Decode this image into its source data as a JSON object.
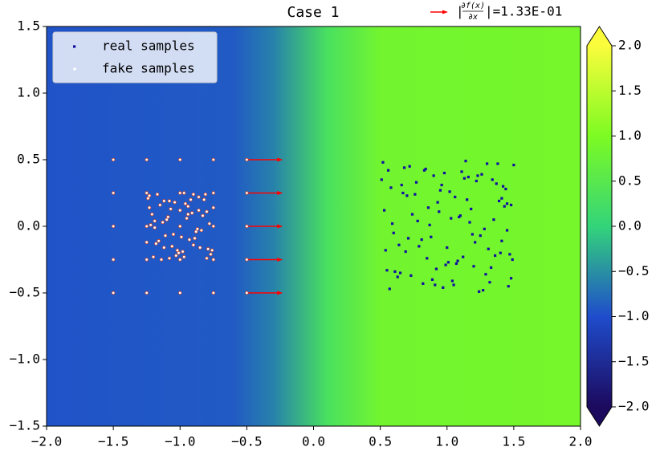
{
  "chart_data": {
    "type": "scatter",
    "title": "Case 1",
    "xlim": [
      -2,
      2
    ],
    "ylim": [
      -1.5,
      1.5
    ],
    "xticks": [
      {
        "value": -2,
        "label": "−2.0"
      },
      {
        "value": -1.5,
        "label": "−1.5"
      },
      {
        "value": -1,
        "label": "−1.0"
      },
      {
        "value": -0.5,
        "label": "−0.5"
      },
      {
        "value": 0,
        "label": "0.0"
      },
      0.5,
      {
        "value": 1,
        "label": "1.0"
      },
      1.5,
      {
        "value": 2,
        "label": "2.0"
      }
    ],
    "yticks": [
      {
        "value": -1.5,
        "label": "−1.5"
      },
      {
        "value": -1,
        "label": "−1.0"
      },
      {
        "value": -0.5,
        "label": "−0.5"
      },
      {
        "value": 0,
        "label": "0.0"
      },
      0.5,
      {
        "value": 1,
        "label": "1.0"
      },
      1.5
    ],
    "legend_loc": "upper left",
    "series": [
      {
        "name": "real samples",
        "color": "#1010a0",
        "marker": "square",
        "x": [
          0.53,
          0.61,
          0.72,
          0.88,
          0.95,
          1.04,
          1.17,
          1.23,
          1.36,
          1.48,
          0.57,
          0.66,
          0.79,
          0.83,
          0.99,
          1.09,
          1.14,
          1.29,
          1.41,
          1.45,
          0.51,
          0.69,
          0.74,
          0.91,
          1.02,
          1.11,
          1.21,
          1.33,
          1.38,
          1.49,
          0.59,
          0.63,
          0.77,
          0.86,
          0.97,
          1.06,
          1.19,
          1.26,
          1.31,
          1.44,
          0.55,
          0.68,
          0.81,
          0.93,
          1.01,
          1.13,
          1.24,
          1.35,
          1.42,
          1.47,
          0.52,
          0.64,
          0.76,
          0.89,
          0.94,
          1.07,
          1.16,
          1.28,
          1.39,
          1.46,
          0.58,
          0.71,
          0.84,
          0.92,
          1.03,
          1.12,
          1.22,
          1.32,
          1.43,
          1.5,
          0.54,
          0.67,
          0.73,
          0.87,
          0.98,
          1.08,
          1.18,
          1.27,
          1.37,
          1.41,
          0.6,
          0.7,
          0.82,
          0.9,
          1.0,
          1.1,
          1.2,
          1.3,
          1.4,
          1.45,
          0.56,
          0.65,
          0.78,
          0.85,
          0.96,
          1.05,
          1.15,
          1.25,
          1.34,
          1.48
        ],
        "y": [
          0.12,
          -0.34,
          0.45,
          -0.08,
          0.27,
          -0.41,
          0.03,
          0.38,
          -0.22,
          0.16,
          -0.47,
          0.31,
          -0.15,
          0.42,
          -0.29,
          0.07,
          0.49,
          -0.36,
          0.21,
          -0.03,
          0.35,
          -0.19,
          0.09,
          -0.44,
          0.26,
          0.41,
          -0.12,
          -0.31,
          0.47,
          -0.25,
          0.02,
          -0.38,
          0.33,
          0.14,
          -0.46,
          0.22,
          -0.06,
          0.39,
          -0.17,
          0.28,
          -0.33,
          0.44,
          -0.1,
          0.18,
          -0.27,
          0.36,
          -0.49,
          0.05,
          0.3,
          -0.21,
          0.48,
          -0.14,
          0.24,
          -0.4,
          0.11,
          -0.28,
          0.37,
          -0.02,
          0.19,
          -0.45,
          0.29,
          -0.09,
          0.43,
          -0.32,
          0.06,
          -0.23,
          0.34,
          -0.42,
          0.15,
          0.46,
          -0.18,
          0.25,
          -0.37,
          0.01,
          0.4,
          -0.26,
          0.13,
          -0.48,
          0.32,
          -0.11,
          -0.05,
          0.23,
          -0.43,
          0.38,
          -0.16,
          0.08,
          -0.3,
          0.47,
          -0.2,
          0.17,
          0.42,
          -0.35,
          0.04,
          -0.24,
          0.31,
          -0.44,
          0.2,
          -0.07,
          0.35,
          -0.39
        ]
      },
      {
        "name": "fake samples",
        "color": "#ffffff",
        "edgecolor": "#d24a2a",
        "marker": "circle",
        "x": [
          -1.5,
          -1.25,
          -1,
          -0.75,
          -0.5,
          -1.5,
          -1.25,
          -1,
          -0.75,
          -0.5,
          -1.5,
          -1.25,
          -1,
          -0.75,
          -0.5,
          -1.5,
          -1.25,
          -1,
          -0.75,
          -0.5,
          -1.5,
          -1.25,
          -1,
          -0.75,
          -0.5,
          -1.24,
          -1.18,
          -1.1,
          -1.03,
          -0.96,
          -0.88,
          -0.81,
          -0.76,
          -1.21,
          -1.14,
          -1.07,
          -0.99,
          -0.92,
          -0.85,
          -0.78,
          -1.23,
          -1.16,
          -1.09,
          -1.01,
          -0.94,
          -0.87,
          -0.8,
          -1.2,
          -1.12,
          -1.05,
          -0.97,
          -0.9,
          -0.83,
          -0.77,
          -1.22,
          -1.15,
          -1.08,
          -1.0,
          -0.93,
          -0.86,
          -0.79,
          -1.19,
          -1.11,
          -1.04,
          -0.98,
          -0.91,
          -0.84,
          -0.75,
          -1.25,
          -1.17,
          -1.06,
          -0.95,
          -0.89,
          -0.82,
          -1.13,
          -1.02,
          -0.9,
          -1.19,
          -0.86,
          -1.08,
          -0.97,
          -1.23,
          -0.8,
          -1.12,
          -0.94
        ],
        "y": [
          0.5,
          0.5,
          0.5,
          0.5,
          0.5,
          0.25,
          0.25,
          0.25,
          0.25,
          0.25,
          0,
          0,
          0,
          0,
          0,
          -0.25,
          -0.25,
          -0.25,
          -0.25,
          -0.25,
          -0.5,
          -0.5,
          -0.5,
          -0.5,
          -0.5,
          0.21,
          -0.13,
          0.05,
          -0.22,
          0.17,
          -0.04,
          0.24,
          -0.18,
          0.09,
          -0.25,
          0.13,
          -0.08,
          0.2,
          -0.16,
          0.02,
          0.23,
          -0.11,
          0.07,
          -0.2,
          0.15,
          -0.02,
          0.11,
          -0.23,
          0.19,
          -0.06,
          0.25,
          -0.14,
          0.08,
          -0.21,
          0.01,
          0.16,
          -0.24,
          0.12,
          -0.1,
          0.22,
          -0.17,
          0.04,
          -0.07,
          0.18,
          -0.19,
          0.1,
          -0.03,
          0.14,
          -0.12,
          0.24,
          -0.15,
          0.06,
          -0.09,
          0.2,
          0.03,
          -0.18,
          0.24,
          -0.01,
          0.12,
          0.19,
          -0.23,
          0.14,
          -0.24,
          -0.16,
          0.09
        ]
      }
    ],
    "arrows": {
      "color": "#ff0000",
      "x": [
        -0.5,
        -0.5,
        -0.5,
        -0.5,
        -0.5
      ],
      "y": [
        0.5,
        0.25,
        0,
        -0.25,
        -0.5
      ],
      "u": [
        0.27,
        0.27,
        0.27,
        0.27,
        0.27
      ],
      "label": {
        "open": "|",
        "numerator": "∂f(x)",
        "denominator": "∂x",
        "close": "|=1.33E-01"
      }
    },
    "colormap": {
      "values": [
        -2,
        -1,
        0,
        1,
        2
      ],
      "colors": [
        "#1c0a5e",
        "#1f4ccc",
        "#33d47a",
        "#7dfb22",
        "#fafc3c"
      ]
    },
    "field": {
      "x": [
        -2,
        -0.6,
        -0.3,
        0.1,
        0.5,
        2
      ],
      "values": [
        -0.95,
        -0.9,
        -0.6,
        0.3,
        0.85,
        0.9
      ]
    },
    "colorbar": {
      "lim": [
        -2,
        2
      ],
      "extend": "both",
      "ticks": [
        {
          "value": 2,
          "label": "2.0"
        },
        1.5,
        {
          "value": 1,
          "label": "1.0"
        },
        0.5,
        {
          "value": 0,
          "label": "0.0"
        },
        {
          "value": -0.5,
          "label": "−0.5"
        },
        {
          "value": -1,
          "label": "−1.0"
        },
        {
          "value": -1.5,
          "label": "−1.5"
        },
        {
          "value": -2,
          "label": "−2.0"
        }
      ]
    }
  }
}
